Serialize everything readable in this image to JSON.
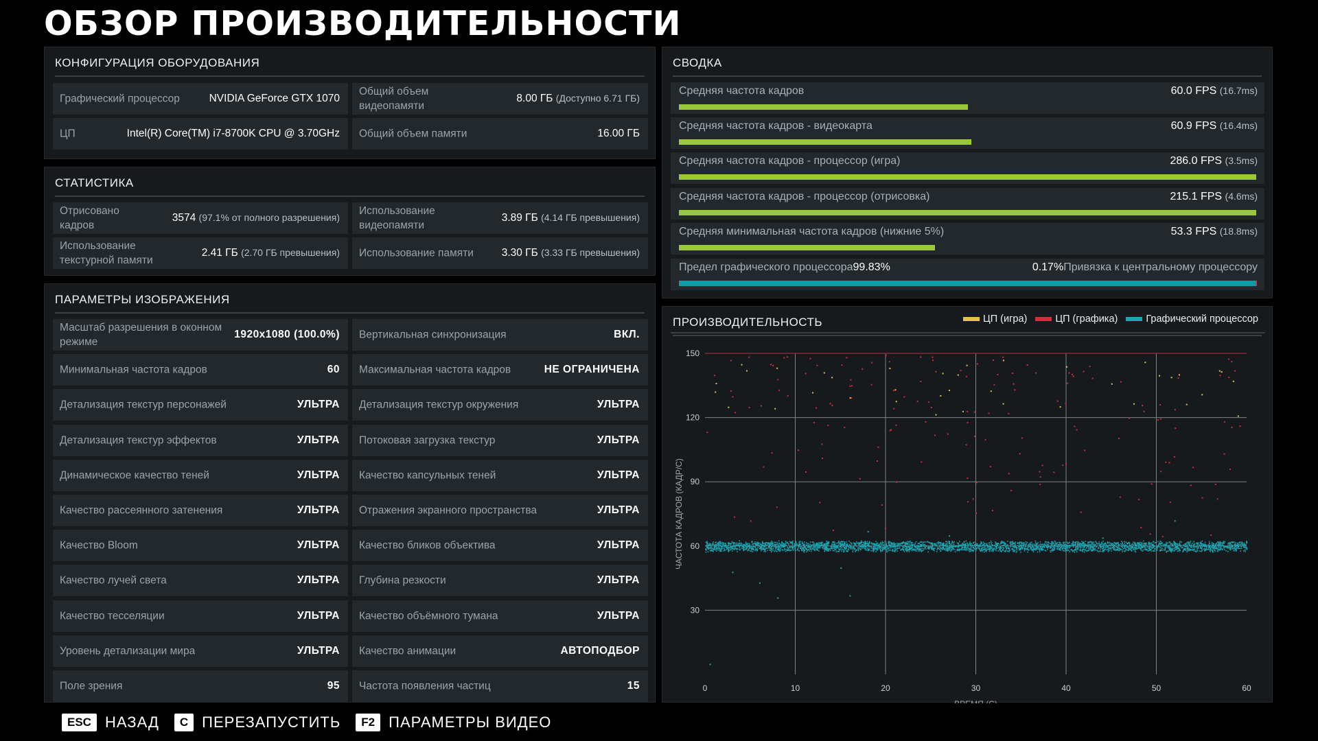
{
  "title": "ОБЗОР ПРОИЗВОДИТЕЛЬНОСТИ",
  "hardware": {
    "heading": "КОНФИГУРАЦИЯ ОБОРУДОВАНИЯ",
    "gpu_label": "Графический процессор",
    "gpu_value": "NVIDIA GeForce GTX 1070",
    "vram_label": "Общий объем видеопамяти",
    "vram_value": "8.00 ГБ",
    "vram_sub": "(Доступно 6.71 ГБ)",
    "cpu_label": "ЦП",
    "cpu_value": "Intel(R) Core(TM) i7-8700K CPU @ 3.70GHz",
    "ram_label": "Общий объем памяти",
    "ram_value": "16.00 ГБ"
  },
  "stats": {
    "heading": "СТАТИСТИКА",
    "rendered_label": "Отрисовано кадров",
    "rendered_value": "3574",
    "rendered_sub": "(97.1% от полного разрешения)",
    "vram_use_label": "Использование видеопамяти",
    "vram_use_value": "3.89 ГБ",
    "vram_use_sub": "(4.14 ГБ превышения)",
    "tex_label": "Использование текстурной памяти",
    "tex_value": "2.41 ГБ",
    "tex_sub": "(2.70 ГБ превышения)",
    "mem_label": "Использование памяти",
    "mem_value": "3.30 ГБ",
    "mem_sub": "(3.33 ГБ превышения)"
  },
  "image_params": {
    "heading": "ПАРАМЕТРЫ ИЗОБРАЖЕНИЯ",
    "left": [
      {
        "label": "Масштаб разрешения в оконном режиме",
        "value": "1920x1080 (100.0%)"
      },
      {
        "label": "Минимальная частота кадров",
        "value": "60"
      },
      {
        "label": "Детализация текстур персонажей",
        "value": "УЛЬТРА"
      },
      {
        "label": "Детализация текстур эффектов",
        "value": "УЛЬТРА"
      },
      {
        "label": "Динамическое качество теней",
        "value": "УЛЬТРА"
      },
      {
        "label": "Качество рассеянного затенения",
        "value": "УЛЬТРА"
      },
      {
        "label": "Качество Bloom",
        "value": "УЛЬТРА"
      },
      {
        "label": "Качество лучей света",
        "value": "УЛЬТРА"
      },
      {
        "label": "Качество тесселяции",
        "value": "УЛЬТРА"
      },
      {
        "label": "Уровень детализации мира",
        "value": "УЛЬТРА"
      },
      {
        "label": "Поле зрения",
        "value": "95"
      }
    ],
    "right": [
      {
        "label": "Вертикальная синхронизация",
        "value": "ВКЛ."
      },
      {
        "label": "Максимальная частота кадров",
        "value": "НЕ ОГРАНИЧЕНА"
      },
      {
        "label": "Детализация текстур окружения",
        "value": "УЛЬТРА"
      },
      {
        "label": "Потоковая загрузка текстур",
        "value": "УЛЬТРА"
      },
      {
        "label": "Качество капсульных теней",
        "value": "УЛЬТРА"
      },
      {
        "label": "Отражения экранного пространства",
        "value": "УЛЬТРА"
      },
      {
        "label": "Качество бликов объектива",
        "value": "УЛЬТРА"
      },
      {
        "label": "Глубина резкости",
        "value": "УЛЬТРА"
      },
      {
        "label": "Качество объёмного тумана",
        "value": "УЛЬТРА"
      },
      {
        "label": "Качество анимации",
        "value": "АВТОПОДБОР"
      },
      {
        "label": "Частота появления частиц",
        "value": "15"
      }
    ]
  },
  "summary": {
    "heading": "СВОДКА",
    "rows": [
      {
        "label": "Средняя частота кадров",
        "value": "60.0 FPS",
        "sub": "(16.7ms)",
        "fill": 0.5
      },
      {
        "label": "Средняя частота кадров - видеокарта",
        "value": "60.9 FPS",
        "sub": "(16.4ms)",
        "fill": 0.507
      },
      {
        "label": "Средняя частота кадров - процессор (игра)",
        "value": "286.0 FPS",
        "sub": "(3.5ms)",
        "fill": 1.0
      },
      {
        "label": "Средняя частота кадров - процессор (отрисовка)",
        "value": "215.1 FPS",
        "sub": "(4.6ms)",
        "fill": 1.0
      },
      {
        "label": "Средняя минимальная частота кадров (нижние 5%)",
        "value": "53.3 FPS",
        "sub": "(18.8ms)",
        "fill": 0.444
      }
    ],
    "gpu_bound_label": "Предел графического процессора",
    "gpu_bound_value": "99.83%",
    "cpu_bound_value": "0.17%",
    "cpu_bound_label": "Привязка к центральному процессору",
    "gpu_bound_fill": 0.9983
  },
  "performance": {
    "heading": "ПРОИЗВОДИТЕЛЬНОСТЬ",
    "legend": [
      {
        "name": "ЦП (игра)",
        "color": "#e6c24a"
      },
      {
        "name": "ЦП (графика)",
        "color": "#d0303c"
      },
      {
        "name": "Графический процессор",
        "color": "#1aa6b3"
      }
    ]
  },
  "chart_data": {
    "type": "scatter",
    "xlabel": "ВРЕМЯ (С)",
    "ylabel": "ЧАСТОТА КАДРОВ (КАДР/С)",
    "xlim": [
      0,
      60
    ],
    "ylim": [
      0,
      150
    ],
    "xticks": [
      0,
      10,
      20,
      30,
      40,
      50,
      60
    ],
    "yticks": [
      30,
      60,
      90,
      120,
      150
    ],
    "grid": true,
    "legend_position": "top-right",
    "series": [
      {
        "name": "ЦП (игра)",
        "color": "#e6c24a",
        "description_points": [
          [
            4,
            145
          ],
          [
            14,
            139
          ],
          [
            27,
            133
          ],
          [
            33,
            147
          ],
          [
            40,
            144
          ],
          [
            45,
            136
          ],
          [
            55,
            131
          ],
          [
            59,
            121
          ]
        ]
      },
      {
        "name": "ЦП (графика)",
        "color": "#d0303c",
        "description_points": [
          [
            1,
            140
          ],
          [
            3,
            130
          ],
          [
            5,
            72
          ],
          [
            8,
            138
          ],
          [
            12,
            118
          ],
          [
            16,
            135
          ],
          [
            19,
            100
          ],
          [
            22,
            130
          ],
          [
            25,
            125
          ],
          [
            29,
            92
          ],
          [
            31,
            110
          ],
          [
            34,
            141
          ],
          [
            37,
            95
          ],
          [
            39,
            128
          ],
          [
            42,
            105
          ],
          [
            46,
            137
          ],
          [
            48,
            82
          ],
          [
            52,
            124
          ],
          [
            54,
            97
          ],
          [
            57,
            140
          ]
        ]
      },
      {
        "name": "Графический процессор",
        "color": "#1aa6b3",
        "mean": 60,
        "spread": 2,
        "outliers": [
          [
            0.5,
            5
          ],
          [
            3,
            48
          ],
          [
            6,
            43
          ],
          [
            8,
            36
          ],
          [
            15,
            50
          ],
          [
            16,
            37
          ],
          [
            18,
            67
          ],
          [
            27,
            65
          ],
          [
            44,
            64
          ],
          [
            52,
            72
          ]
        ]
      }
    ]
  },
  "footer": [
    {
      "key": "ESC",
      "label": "НАЗАД"
    },
    {
      "key": "C",
      "label": "ПЕРЕЗАПУСТИТЬ"
    },
    {
      "key": "F2",
      "label": "ПАРАМЕТРЫ ВИДЕО"
    }
  ]
}
